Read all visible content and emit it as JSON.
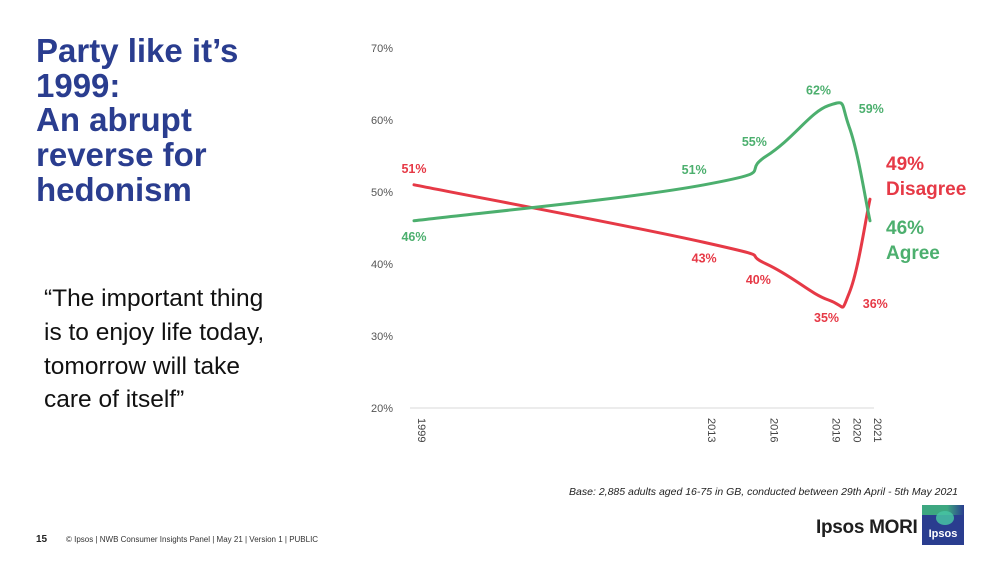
{
  "slide": {
    "title_lines": [
      "Party like it’s",
      "1999:",
      "An abrupt",
      "reverse for",
      "hedonism"
    ],
    "quote_lines": [
      "“The important thing",
      "is to enjoy life today,",
      "tomorrow will take",
      "care of itself”"
    ],
    "base_note": "Base: 2,885 adults aged 16-75 in GB, conducted between 29th April - 5th May 2021",
    "page_number": "15",
    "footer": "© Ipsos | NWB Consumer Insights Panel | May 21 | Version 1 | PUBLIC",
    "logo": {
      "text": "Ipsos MORI",
      "badge": "Ipsos"
    }
  },
  "chart_data": {
    "type": "line",
    "title": "",
    "xlabel": "",
    "ylabel": "",
    "x": [
      1999,
      2013,
      2016,
      2019,
      2020,
      2021
    ],
    "x_tick_labels": [
      "1999",
      "2013",
      "2016",
      "2019",
      "2020",
      "2021"
    ],
    "y_tick_labels": [
      "20%",
      "30%",
      "40%",
      "50%",
      "60%",
      "70%"
    ],
    "ylim": [
      20,
      70
    ],
    "grid": false,
    "series": [
      {
        "name": "Disagree",
        "color": "#e63946",
        "values": [
          51,
          43,
          40,
          35,
          36,
          49
        ],
        "data_labels": [
          "51%",
          "43%",
          "40%",
          "35%",
          "36%",
          ""
        ],
        "end_value_label": "49%"
      },
      {
        "name": "Agree",
        "color": "#4caf6e",
        "values": [
          46,
          51,
          55,
          62,
          59,
          46
        ],
        "data_labels": [
          "46%",
          "51%",
          "55%",
          "62%",
          "59%",
          ""
        ],
        "end_value_label": "46%"
      }
    ]
  }
}
